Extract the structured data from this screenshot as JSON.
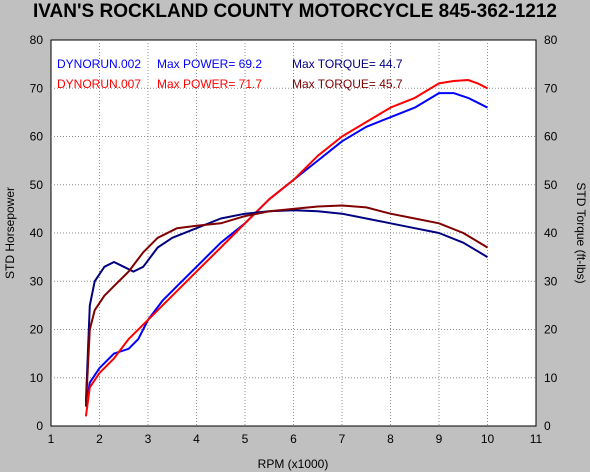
{
  "title": "IVAN'S ROCKLAND COUNTY MOTORCYCLE 845-362-1212",
  "chart_data": {
    "type": "line",
    "xlabel": "RPM (x1000)",
    "ylabel_left": "STD Horsepower",
    "ylabel_right": "STD Torque (ft-lbs)",
    "xlim": [
      1,
      11
    ],
    "ylim": [
      0,
      80
    ],
    "xticks": [
      "1",
      "2",
      "3",
      "4",
      "5",
      "6",
      "7",
      "8",
      "9",
      "10",
      "11"
    ],
    "yticks": [
      "0",
      "10",
      "20",
      "30",
      "40",
      "50",
      "60",
      "70",
      "80"
    ],
    "grid": true,
    "legend": [
      {
        "run": "DYNORUN.002",
        "power_label": "Max POWER= 69.2",
        "torque_label": "Max TORQUE= 44.7",
        "color": "#0000ff",
        "torque_color": "#000080"
      },
      {
        "run": "DYNORUN.007",
        "power_label": "Max POWER= 71.7",
        "torque_label": "Max TORQUE= 45.7",
        "color": "#ff0000",
        "torque_color": "#800000"
      }
    ],
    "series": [
      {
        "name": "DYNORUN.002 Power",
        "color": "#0000ff",
        "x": [
          1.75,
          1.8,
          2.0,
          2.3,
          2.6,
          2.8,
          3.0,
          3.3,
          3.6,
          4.0,
          4.5,
          5.0,
          5.5,
          6.0,
          6.5,
          7.0,
          7.5,
          8.0,
          8.5,
          9.0,
          9.3,
          9.6,
          9.8,
          10.0
        ],
        "y": [
          6,
          9,
          12,
          15,
          16,
          18,
          22,
          26,
          29,
          33,
          38,
          42,
          47,
          51,
          55,
          59,
          62,
          64,
          66,
          69,
          69,
          68,
          67,
          66
        ]
      },
      {
        "name": "DYNORUN.007 Power",
        "color": "#ff0000",
        "x": [
          1.72,
          1.8,
          2.0,
          2.3,
          2.6,
          3.0,
          3.5,
          4.0,
          4.5,
          5.0,
          5.5,
          6.0,
          6.5,
          7.0,
          7.5,
          8.0,
          8.5,
          9.0,
          9.3,
          9.6,
          9.8,
          10.0
        ],
        "y": [
          2,
          8,
          11,
          14,
          18,
          22,
          27,
          32,
          37,
          42,
          47,
          51,
          56,
          60,
          63,
          66,
          68,
          71,
          71.5,
          71.7,
          71,
          70
        ]
      },
      {
        "name": "DYNORUN.002 Torque",
        "color": "#000080",
        "x": [
          1.72,
          1.8,
          1.9,
          2.1,
          2.3,
          2.5,
          2.7,
          2.9,
          3.2,
          3.5,
          4.0,
          4.5,
          5.0,
          5.5,
          6.0,
          6.5,
          7.0,
          7.5,
          8.0,
          8.5,
          9.0,
          9.5,
          10.0
        ],
        "y": [
          5,
          25,
          30,
          33,
          34,
          33,
          32,
          33,
          37,
          39,
          41,
          43,
          44,
          44.5,
          44.7,
          44.5,
          44,
          43,
          42,
          41,
          40,
          38,
          35
        ]
      },
      {
        "name": "DYNORUN.007 Torque",
        "color": "#800000",
        "x": [
          1.72,
          1.8,
          1.9,
          2.1,
          2.3,
          2.6,
          2.9,
          3.2,
          3.6,
          4.0,
          4.5,
          5.0,
          5.5,
          6.0,
          6.5,
          7.0,
          7.5,
          8.0,
          8.5,
          9.0,
          9.5,
          10.0
        ],
        "y": [
          4,
          20,
          24,
          27,
          29,
          32,
          36,
          39,
          41,
          41.5,
          42,
          43.5,
          44.5,
          45,
          45.5,
          45.7,
          45.3,
          44,
          43,
          42,
          40,
          37
        ]
      }
    ]
  }
}
